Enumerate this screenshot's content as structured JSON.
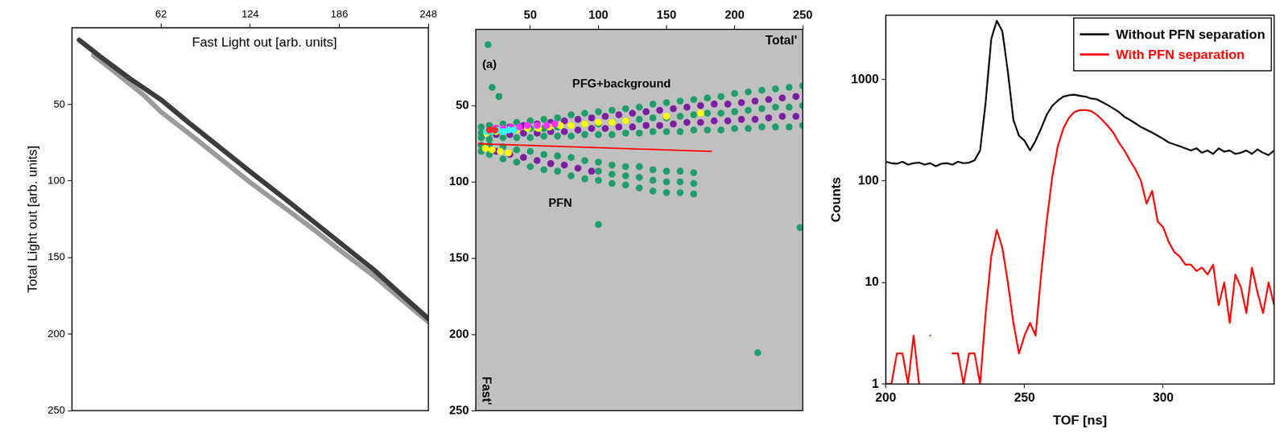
{
  "chart_data": [
    {
      "type": "line",
      "xlabel": "Fast Light out [arb. units]",
      "ylabel": "Total Light out [arb. units]",
      "xlim": [
        0,
        248
      ],
      "xticks": [
        62,
        124,
        186,
        248
      ],
      "ylim": [
        250,
        0
      ],
      "yticks": [
        50,
        100,
        150,
        200,
        250
      ],
      "grid": false,
      "series": [
        {
          "color": "#9b9b9b",
          "x": [
            15,
            30,
            50,
            62,
            80,
            100,
            124,
            150,
            170,
            186,
            210,
            230,
            248
          ],
          "values": [
            18,
            29,
            44,
            55,
            68,
            83,
            101,
            119,
            133,
            145,
            162,
            178,
            192
          ]
        },
        {
          "color": "#3c3c3c",
          "x": [
            5,
            20,
            40,
            62,
            80,
            100,
            124,
            150,
            170,
            186,
            210,
            230,
            248
          ],
          "values": [
            8,
            19,
            33,
            47,
            61,
            76,
            94,
            113,
            128,
            140,
            158,
            175,
            190
          ]
        }
      ]
    },
    {
      "type": "scatter",
      "xlabel": "Total'",
      "ylabel": "Fast'",
      "xlim": [
        10,
        250
      ],
      "xticks": [
        50,
        100,
        150,
        200,
        250
      ],
      "ylim": [
        250,
        0
      ],
      "yticks": [
        50,
        100,
        150,
        200,
        250
      ],
      "grid": false,
      "annotations": [
        {
          "text": "(a)",
          "x": 20,
          "y": 23
        },
        {
          "text": "PFG+background",
          "x": 117,
          "y": 36
        },
        {
          "text": "PFN",
          "x": 72,
          "y": 114
        }
      ],
      "series": [
        {
          "color": "#1f9e6a",
          "x": [
            14,
            14,
            14,
            20,
            20,
            20,
            30,
            30,
            30,
            40,
            40,
            40,
            50,
            50,
            50,
            60,
            60,
            60,
            70,
            70,
            70,
            80,
            80,
            80,
            90,
            90,
            90,
            100,
            100,
            100,
            110,
            110,
            110,
            120,
            120,
            120,
            130,
            130,
            130,
            140,
            140,
            140,
            150,
            150,
            150,
            160,
            160,
            160,
            170,
            170,
            170,
            180,
            180,
            180,
            190,
            190,
            190,
            200,
            200,
            200,
            210,
            210,
            210,
            220,
            220,
            220,
            230,
            230,
            230,
            240,
            240,
            240,
            250,
            250,
            250,
            14,
            14,
            20,
            20,
            30,
            30,
            40,
            40,
            50,
            50,
            60,
            60,
            70,
            70,
            80,
            80,
            90,
            90,
            100,
            100,
            110,
            110,
            120,
            120,
            130,
            130,
            140,
            140,
            150,
            150,
            160,
            160,
            170,
            170,
            100,
            110,
            120,
            130,
            140,
            150,
            160,
            170,
            19,
            22,
            27,
            100,
            217,
            248
          ],
          "values": [
            64,
            68,
            71,
            63,
            68,
            72,
            62,
            67,
            71,
            61,
            66,
            71,
            60,
            65,
            71,
            59,
            65,
            70,
            58,
            64,
            70,
            56,
            63,
            70,
            55,
            62,
            69,
            54,
            62,
            69,
            53,
            61,
            69,
            52,
            60,
            68,
            51,
            59,
            68,
            49,
            58,
            67,
            48,
            58,
            67,
            47,
            57,
            67,
            46,
            56,
            66,
            45,
            55,
            66,
            44,
            55,
            66,
            42,
            54,
            65,
            41,
            53,
            65,
            40,
            52,
            64,
            39,
            51,
            64,
            38,
            51,
            64,
            37,
            50,
            63,
            76,
            80,
            76,
            82,
            77,
            85,
            79,
            87,
            80,
            90,
            82,
            92,
            83,
            93,
            84,
            96,
            86,
            98,
            87,
            99,
            89,
            101,
            90,
            102,
            90,
            104,
            92,
            106,
            93,
            107,
            93,
            107,
            94,
            108,
            93,
            95,
            96,
            97,
            99,
            100,
            100,
            101,
            10,
            38,
            44,
            128,
            212,
            130
          ]
        },
        {
          "color": "#7b1fa2",
          "x": [
            25,
            25,
            35,
            35,
            45,
            45,
            55,
            55,
            65,
            65,
            75,
            75,
            85,
            85,
            95,
            95,
            105,
            105,
            115,
            115,
            125,
            125,
            135,
            135,
            145,
            145,
            155,
            155,
            165,
            165,
            175,
            175,
            185,
            185,
            195,
            195,
            205,
            205,
            215,
            215,
            225,
            225,
            235,
            235,
            245,
            245,
            25,
            35,
            45,
            55,
            65,
            75,
            85,
            95
          ],
          "values": [
            65,
            69,
            64,
            69,
            63,
            68,
            62,
            68,
            61,
            67,
            60,
            67,
            59,
            66,
            58,
            65,
            57,
            65,
            56,
            64,
            55,
            64,
            54,
            63,
            53,
            63,
            52,
            62,
            51,
            61,
            50,
            61,
            49,
            60,
            49,
            60,
            48,
            59,
            47,
            59,
            46,
            58,
            45,
            57,
            44,
            57,
            80,
            82,
            84,
            86,
            88,
            89,
            91,
            93
          ]
        },
        {
          "color": "#ffff00",
          "x": [
            18,
            25,
            32,
            40,
            48,
            56,
            64,
            72,
            80,
            90,
            100,
            110,
            120,
            150,
            175,
            17,
            22,
            28,
            34
          ],
          "values": [
            68,
            67,
            66,
            66,
            65,
            65,
            64,
            63,
            63,
            62,
            61,
            61,
            60,
            57,
            55,
            78,
            79,
            80,
            81
          ]
        },
        {
          "color": "#ff33ff",
          "x": [
            24,
            30,
            36,
            42,
            48,
            55,
            62,
            68
          ],
          "values": [
            65,
            65,
            64,
            64,
            63,
            63,
            63,
            62
          ]
        },
        {
          "color": "#33ffff",
          "x": [
            18,
            22,
            26,
            30,
            34,
            38
          ],
          "values": [
            67,
            67,
            66,
            67,
            66,
            66
          ]
        },
        {
          "color": "#ff2a2a",
          "x": [
            20,
            24
          ],
          "values": [
            66,
            66
          ]
        },
        {
          "type": "line",
          "color": "#ff0000",
          "x": [
            12,
            183
          ],
          "values": [
            75,
            80
          ]
        }
      ]
    },
    {
      "type": "line",
      "xlabel": "TOF [ns]",
      "ylabel": "Counts",
      "log": "y",
      "xlim": [
        200,
        340
      ],
      "xticks": [
        200,
        250,
        300
      ],
      "ylim": [
        1,
        4300
      ],
      "yticks": [
        1,
        10,
        100,
        1000
      ],
      "grid": false,
      "legend": "upper right",
      "x": [
        200,
        202,
        204,
        206,
        208,
        210,
        212,
        214,
        216,
        218,
        220,
        222,
        224,
        226,
        228,
        230,
        232,
        234,
        236,
        238,
        240,
        242,
        244,
        246,
        248,
        250,
        252,
        254,
        256,
        258,
        260,
        262,
        264,
        266,
        268,
        270,
        272,
        274,
        276,
        278,
        280,
        282,
        284,
        286,
        288,
        290,
        292,
        294,
        296,
        298,
        300,
        302,
        304,
        306,
        308,
        310,
        312,
        314,
        316,
        318,
        320,
        322,
        324,
        326,
        328,
        330,
        332,
        334,
        336,
        338,
        340
      ],
      "series": [
        {
          "name": "Without PFN separation",
          "color": "#000000",
          "values": [
            155,
            150,
            148,
            155,
            145,
            150,
            152,
            145,
            150,
            140,
            148,
            150,
            145,
            155,
            150,
            152,
            160,
            200,
            600,
            2500,
            3800,
            3000,
            1200,
            400,
            280,
            250,
            200,
            250,
            330,
            450,
            550,
            620,
            680,
            700,
            710,
            690,
            680,
            650,
            640,
            600,
            560,
            520,
            480,
            430,
            400,
            370,
            340,
            320,
            300,
            280,
            260,
            240,
            230,
            220,
            210,
            200,
            210,
            190,
            200,
            185,
            210,
            195,
            200,
            185,
            190,
            200,
            185,
            205,
            190,
            180,
            200
          ]
        },
        {
          "name": "With PFN separation",
          "color": "#ff0000",
          "values": [
            1,
            1,
            2,
            2,
            1,
            3,
            1,
            null,
            3,
            null,
            null,
            null,
            2,
            2,
            1,
            2,
            2,
            1,
            5,
            18,
            33,
            22,
            10,
            4,
            2,
            3,
            4,
            3,
            12,
            40,
            110,
            220,
            330,
            420,
            480,
            500,
            500,
            490,
            450,
            400,
            350,
            300,
            240,
            200,
            160,
            130,
            100,
            60,
            80,
            40,
            35,
            25,
            20,
            18,
            15,
            15,
            13,
            14,
            12,
            15,
            6,
            10,
            4,
            12,
            9,
            5,
            14,
            8,
            5,
            10,
            6
          ]
        }
      ]
    }
  ]
}
